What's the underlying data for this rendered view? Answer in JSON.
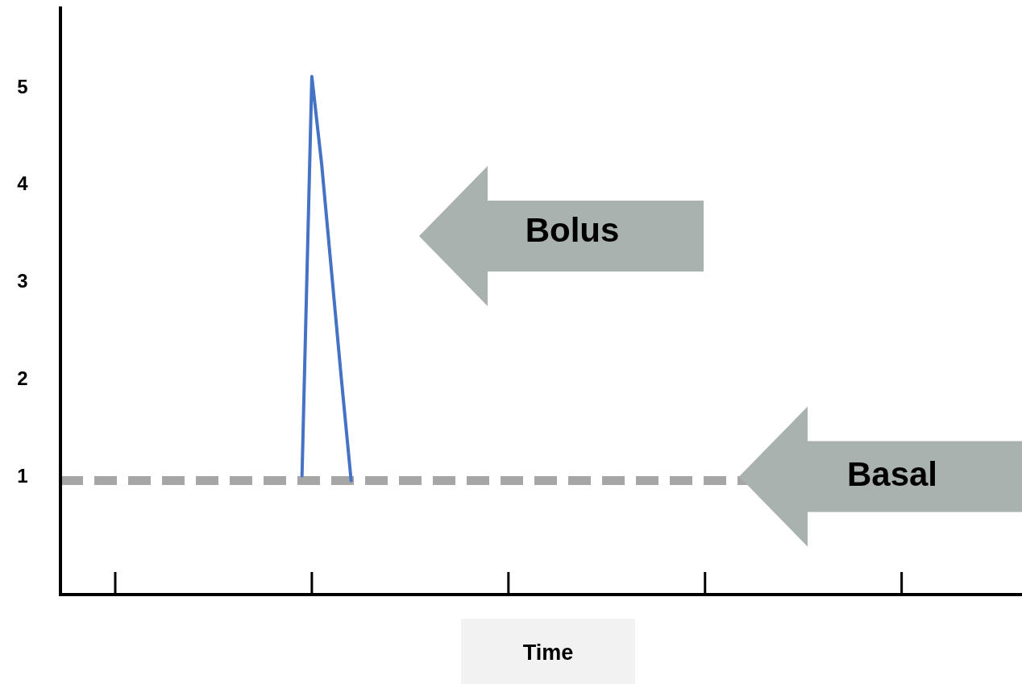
{
  "chart_data": {
    "type": "line",
    "xlabel": "Time",
    "categories": [
      null,
      null,
      null,
      null,
      null,
      null,
      null,
      null,
      null,
      null,
      null,
      null,
      null,
      null,
      null,
      null,
      null,
      null,
      null,
      null,
      null,
      null,
      null,
      null,
      null,
      null,
      null,
      null,
      null,
      null,
      null,
      null,
      null,
      null,
      null,
      null,
      null,
      null,
      null,
      null,
      null,
      null,
      null,
      null,
      null,
      null,
      null,
      null,
      null,
      null,
      null,
      null,
      null,
      null,
      null,
      null,
      null,
      null,
      null,
      null,
      null,
      null,
      null,
      null,
      null,
      null,
      null,
      null,
      null,
      null,
      null,
      null,
      null,
      null,
      null,
      null,
      null,
      null,
      null,
      null,
      null,
      null,
      null,
      null,
      null,
      null,
      null,
      null,
      null,
      null,
      null,
      null,
      null,
      null,
      null,
      null,
      null,
      null
    ],
    "ylim": [
      -0.22,
      5.82
    ],
    "yticks": [
      1,
      2,
      3,
      4,
      5
    ],
    "tick_labels": "y",
    "grid": false,
    "marker": "none",
    "line_style": "solid",
    "series": [
      {
        "color": "#4472c4",
        "values": [
          null,
          null,
          null,
          null,
          null,
          null,
          null,
          null,
          null,
          null,
          null,
          null,
          null,
          null,
          null,
          null,
          null,
          null,
          null,
          null,
          null,
          null,
          null,
          null,
          1,
          5.1,
          4.2,
          3.1,
          2.0,
          0.95,
          null,
          null,
          null,
          null,
          null,
          null,
          null,
          null,
          null,
          null,
          null,
          null,
          null,
          null,
          null,
          null,
          null,
          null,
          null,
          null,
          null,
          null,
          null,
          null,
          null,
          null,
          null,
          null,
          null,
          null,
          null,
          null,
          null,
          null,
          null,
          null,
          null,
          null,
          null,
          null,
          null,
          null,
          null,
          null,
          null,
          null,
          null,
          null,
          null,
          null,
          null,
          null,
          null,
          null,
          null,
          null,
          null,
          null,
          null,
          null,
          null,
          null,
          null,
          null,
          null,
          null,
          null,
          null
        ]
      }
    ],
    "ref_lines": [
      {
        "axis": "y",
        "value": 0.95,
        "label": "Basal",
        "color": "#a6a6a6",
        "line_style": "dashed"
      }
    ],
    "annotations": [
      "Bolus"
    ]
  }
}
